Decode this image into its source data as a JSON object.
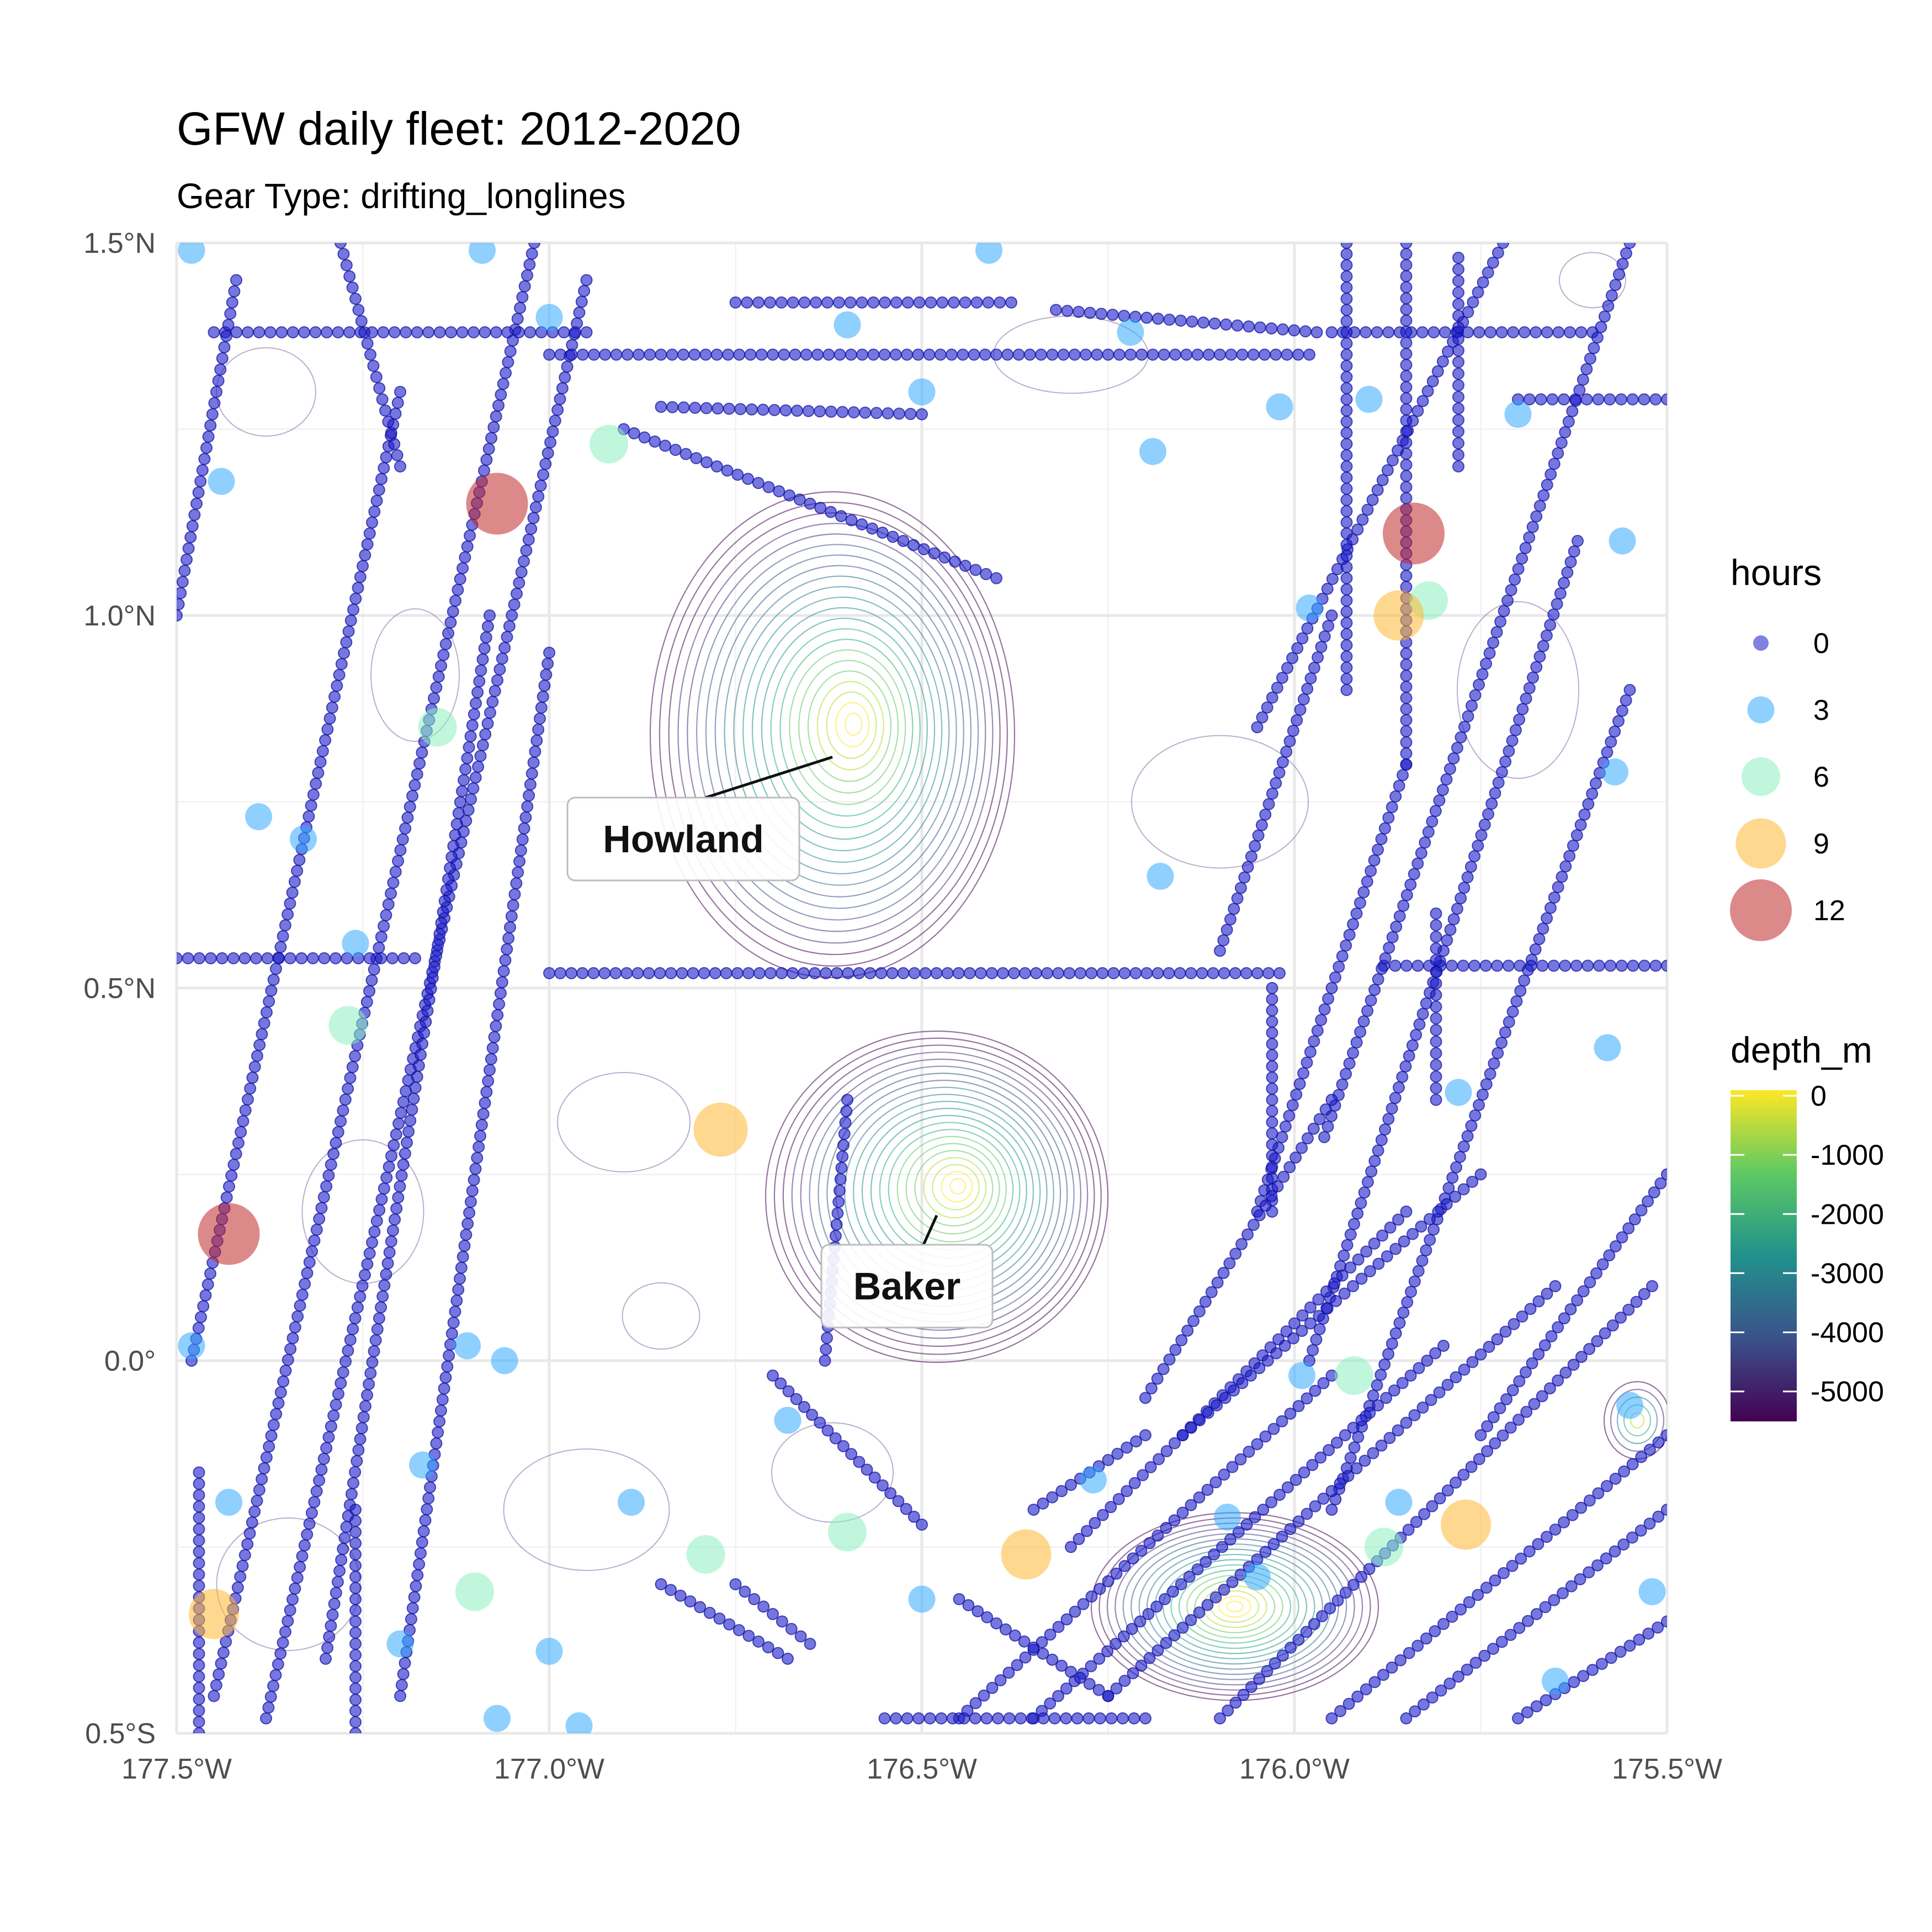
{
  "title": "GFW daily fleet: 2012-2020",
  "subtitle": "Gear Type: drifting_longlines",
  "chart_data": {
    "type": "scatter",
    "title": "GFW daily fleet: 2012-2020",
    "subtitle": "Gear Type: drifting_longlines",
    "xlabel": "",
    "ylabel": "",
    "xlim": [
      -177.5,
      -175.5
    ],
    "ylim": [
      -0.5,
      1.5
    ],
    "x_ticks": [
      -177.5,
      -177.0,
      -176.5,
      -176.0,
      -175.5
    ],
    "x_tick_labels": [
      "177.5°W",
      "177.0°W",
      "176.5°W",
      "176.0°W",
      "175.5°W"
    ],
    "y_ticks": [
      -0.5,
      0.0,
      0.5,
      1.0,
      1.5
    ],
    "y_tick_labels": [
      "0.5°S",
      "0.0°",
      "0.5°N",
      "1.0°N",
      "1.5°N"
    ],
    "grid": true,
    "annotations": [
      {
        "label": "Howland",
        "lon": -176.62,
        "lat": 0.81
      },
      {
        "label": "Baker",
        "lon": -176.48,
        "lat": 0.195
      }
    ],
    "legend_hours": {
      "title": "hours",
      "position": "right",
      "entries": [
        {
          "label": "0",
          "value": 0,
          "color": "#1a1acc"
        },
        {
          "label": "3",
          "value": 3,
          "color": "#33aaff"
        },
        {
          "label": "6",
          "value": 6,
          "color": "#8cf0c0"
        },
        {
          "label": "9",
          "value": 9,
          "color": "#ffb833"
        },
        {
          "label": "12",
          "value": 12,
          "color": "#c0282a"
        }
      ]
    },
    "legend_depth": {
      "title": "depth_m",
      "position": "right",
      "ticks": [
        0,
        -1000,
        -2000,
        -3000,
        -4000,
        -5000
      ],
      "tick_labels": [
        "0",
        "-1000",
        "-2000",
        "-3000",
        "-4000",
        "-5000"
      ],
      "colors": [
        "#fde725",
        "#5ec962",
        "#21918c",
        "#3b528b",
        "#440154"
      ]
    },
    "tracks": [
      {
        "name": "",
        "from": [
          -177.45,
          -0.45
        ],
        "to": [
          -177.02,
          1.5
        ]
      },
      {
        "name": "",
        "from": [
          -177.38,
          -0.48
        ],
        "to": [
          -176.95,
          1.45
        ]
      },
      {
        "name": "",
        "from": [
          -177.3,
          -0.4
        ],
        "to": [
          -177.08,
          1.0
        ]
      },
      {
        "name": "",
        "from": [
          -177.2,
          -0.45
        ],
        "to": [
          -177.0,
          0.95
        ]
      },
      {
        "name": "",
        "from": [
          -177.48,
          0.0
        ],
        "to": [
          -177.2,
          1.3
        ]
      },
      {
        "name": "",
        "from": [
          -177.5,
          0.54
        ],
        "to": [
          -177.18,
          0.54
        ]
      },
      {
        "name": "",
        "from": [
          -177.0,
          0.52
        ],
        "to": [
          -176.02,
          0.52
        ]
      },
      {
        "name": "",
        "from": [
          -175.88,
          0.53
        ],
        "to": [
          -175.5,
          0.53
        ]
      },
      {
        "name": "",
        "from": [
          -177.45,
          1.38
        ],
        "to": [
          -176.95,
          1.38
        ]
      },
      {
        "name": "",
        "from": [
          -177.0,
          1.35
        ],
        "to": [
          -175.98,
          1.35
        ]
      },
      {
        "name": "",
        "from": [
          -176.75,
          1.42
        ],
        "to": [
          -176.38,
          1.42
        ]
      },
      {
        "name": "",
        "from": [
          -176.32,
          1.41
        ],
        "to": [
          -175.97,
          1.38
        ]
      },
      {
        "name": "",
        "from": [
          -175.95,
          1.38
        ],
        "to": [
          -175.6,
          1.38
        ]
      },
      {
        "name": "",
        "from": [
          -175.7,
          1.29
        ],
        "to": [
          -175.5,
          1.29
        ]
      },
      {
        "name": "",
        "from": [
          -176.85,
          1.28
        ],
        "to": [
          -176.5,
          1.27
        ]
      },
      {
        "name": "",
        "from": [
          -176.9,
          1.25
        ],
        "to": [
          -176.4,
          1.05
        ]
      },
      {
        "name": "",
        "from": [
          -176.05,
          0.85
        ],
        "to": [
          -175.72,
          1.5
        ]
      },
      {
        "name": "",
        "from": [
          -175.96,
          0.3
        ],
        "to": [
          -175.55,
          1.5
        ]
      },
      {
        "name": "",
        "from": [
          -175.98,
          0.0
        ],
        "to": [
          -175.62,
          1.1
        ]
      },
      {
        "name": "",
        "from": [
          -175.95,
          -0.2
        ],
        "to": [
          -175.55,
          0.9
        ]
      },
      {
        "name": "",
        "from": [
          -176.05,
          0.2
        ],
        "to": [
          -175.85,
          0.8
        ]
      },
      {
        "name": "",
        "from": [
          -176.1,
          0.55
        ],
        "to": [
          -175.95,
          1.0
        ]
      },
      {
        "name": "",
        "from": [
          -175.93,
          1.5
        ],
        "to": [
          -175.93,
          0.9
        ]
      },
      {
        "name": "",
        "from": [
          -175.85,
          1.5
        ],
        "to": [
          -175.85,
          0.8
        ]
      },
      {
        "name": "",
        "from": [
          -175.78,
          1.48
        ],
        "to": [
          -175.78,
          1.2
        ]
      },
      {
        "name": "",
        "from": [
          -175.81,
          0.6
        ],
        "to": [
          -175.81,
          0.35
        ]
      },
      {
        "name": "",
        "from": [
          -176.03,
          0.5
        ],
        "to": [
          -176.03,
          0.2
        ]
      },
      {
        "name": "",
        "from": [
          -176.45,
          -0.48
        ],
        "to": [
          -175.95,
          -0.02
        ]
      },
      {
        "name": "",
        "from": [
          -176.35,
          -0.48
        ],
        "to": [
          -175.8,
          0.02
        ]
      },
      {
        "name": "",
        "from": [
          -176.25,
          -0.45
        ],
        "to": [
          -175.65,
          0.1
        ]
      },
      {
        "name": "",
        "from": [
          -176.1,
          -0.48
        ],
        "to": [
          -175.52,
          0.1
        ]
      },
      {
        "name": "",
        "from": [
          -175.95,
          -0.48
        ],
        "to": [
          -175.5,
          -0.1
        ]
      },
      {
        "name": "",
        "from": [
          -176.3,
          -0.25
        ],
        "to": [
          -175.85,
          0.2
        ]
      },
      {
        "name": "",
        "from": [
          -176.15,
          -0.1
        ],
        "to": [
          -175.75,
          0.25
        ]
      },
      {
        "name": "",
        "from": [
          -176.2,
          -0.05
        ],
        "to": [
          -175.95,
          0.35
        ]
      },
      {
        "name": "",
        "from": [
          -175.85,
          -0.48
        ],
        "to": [
          -175.5,
          -0.2
        ]
      },
      {
        "name": "",
        "from": [
          -175.7,
          -0.48
        ],
        "to": [
          -175.5,
          -0.35
        ]
      },
      {
        "name": "",
        "from": [
          -175.75,
          -0.1
        ],
        "to": [
          -175.5,
          0.25
        ]
      },
      {
        "name": "",
        "from": [
          -176.75,
          -0.3
        ],
        "to": [
          -176.65,
          -0.38
        ]
      },
      {
        "name": "",
        "from": [
          -176.85,
          -0.3
        ],
        "to": [
          -176.68,
          -0.4
        ]
      },
      {
        "name": "",
        "from": [
          -176.7,
          -0.02
        ],
        "to": [
          -176.5,
          -0.22
        ]
      },
      {
        "name": "",
        "from": [
          -176.45,
          -0.32
        ],
        "to": [
          -176.25,
          -0.45
        ]
      },
      {
        "name": "",
        "from": [
          -176.55,
          -0.48
        ],
        "to": [
          -176.2,
          -0.48
        ]
      },
      {
        "name": "",
        "from": [
          -176.35,
          -0.2
        ],
        "to": [
          -176.2,
          -0.1
        ]
      },
      {
        "name": "",
        "from": [
          -176.6,
          0.35
        ],
        "to": [
          -176.63,
          0.0
        ]
      },
      {
        "name": "",
        "from": [
          -177.26,
          -0.5
        ],
        "to": [
          -177.26,
          -0.2
        ]
      },
      {
        "name": "",
        "from": [
          -177.47,
          -0.5
        ],
        "to": [
          -177.47,
          -0.15
        ]
      },
      {
        "name": "",
        "from": [
          -177.5,
          1.0
        ],
        "to": [
          -177.42,
          1.45
        ]
      },
      {
        "name": "",
        "from": [
          -177.28,
          1.5
        ],
        "to": [
          -177.2,
          1.2
        ]
      }
    ],
    "points": [
      {
        "lon": -177.48,
        "lat": 1.49,
        "hours": 3
      },
      {
        "lon": -177.09,
        "lat": 1.49,
        "hours": 3
      },
      {
        "lon": -177.0,
        "lat": 1.4,
        "hours": 3
      },
      {
        "lon": -176.6,
        "lat": 1.39,
        "hours": 3
      },
      {
        "lon": -176.5,
        "lat": 1.3,
        "hours": 3
      },
      {
        "lon": -176.19,
        "lat": 1.22,
        "hours": 3
      },
      {
        "lon": -176.02,
        "lat": 1.28,
        "hours": 3
      },
      {
        "lon": -175.9,
        "lat": 1.29,
        "hours": 3
      },
      {
        "lon": -175.7,
        "lat": 1.27,
        "hours": 3
      },
      {
        "lon": -175.56,
        "lat": 1.1,
        "hours": 3
      },
      {
        "lon": -175.57,
        "lat": 0.79,
        "hours": 3
      },
      {
        "lon": -175.98,
        "lat": 1.01,
        "hours": 3
      },
      {
        "lon": -176.18,
        "lat": 0.65,
        "hours": 3
      },
      {
        "lon": -177.44,
        "lat": 1.18,
        "hours": 3
      },
      {
        "lon": -177.39,
        "lat": 0.73,
        "hours": 3
      },
      {
        "lon": -177.33,
        "lat": 0.7,
        "hours": 3
      },
      {
        "lon": -177.26,
        "lat": 0.56,
        "hours": 3
      },
      {
        "lon": -177.48,
        "lat": 0.02,
        "hours": 3
      },
      {
        "lon": -177.11,
        "lat": 0.02,
        "hours": 3
      },
      {
        "lon": -177.06,
        "lat": 0.0,
        "hours": 3
      },
      {
        "lon": -177.17,
        "lat": -0.14,
        "hours": 3
      },
      {
        "lon": -177.43,
        "lat": -0.19,
        "hours": 3
      },
      {
        "lon": -177.2,
        "lat": -0.38,
        "hours": 3
      },
      {
        "lon": -177.0,
        "lat": -0.39,
        "hours": 3
      },
      {
        "lon": -176.89,
        "lat": -0.19,
        "hours": 3
      },
      {
        "lon": -176.68,
        "lat": -0.08,
        "hours": 3
      },
      {
        "lon": -176.5,
        "lat": -0.32,
        "hours": 3
      },
      {
        "lon": -176.27,
        "lat": -0.16,
        "hours": 3
      },
      {
        "lon": -176.09,
        "lat": -0.21,
        "hours": 3
      },
      {
        "lon": -176.05,
        "lat": -0.29,
        "hours": 3
      },
      {
        "lon": -175.99,
        "lat": -0.02,
        "hours": 3
      },
      {
        "lon": -175.86,
        "lat": -0.19,
        "hours": 3
      },
      {
        "lon": -175.58,
        "lat": 0.42,
        "hours": 3
      },
      {
        "lon": -175.55,
        "lat": -0.06,
        "hours": 3
      },
      {
        "lon": -175.52,
        "lat": -0.31,
        "hours": 3
      },
      {
        "lon": -175.65,
        "lat": -0.43,
        "hours": 3
      },
      {
        "lon": -177.07,
        "lat": -0.48,
        "hours": 3
      },
      {
        "lon": -176.96,
        "lat": -0.49,
        "hours": 3
      },
      {
        "lon": -176.41,
        "lat": 1.49,
        "hours": 3
      },
      {
        "lon": -176.22,
        "lat": 1.38,
        "hours": 3
      },
      {
        "lon": -175.78,
        "lat": 0.36,
        "hours": 3
      },
      {
        "lon": -177.27,
        "lat": 0.45,
        "hours": 6
      },
      {
        "lon": -176.92,
        "lat": 1.23,
        "hours": 6
      },
      {
        "lon": -177.15,
        "lat": 0.85,
        "hours": 6
      },
      {
        "lon": -176.6,
        "lat": -0.23,
        "hours": 6
      },
      {
        "lon": -176.79,
        "lat": -0.26,
        "hours": 6
      },
      {
        "lon": -177.1,
        "lat": -0.31,
        "hours": 6
      },
      {
        "lon": -175.82,
        "lat": 1.02,
        "hours": 6
      },
      {
        "lon": -175.92,
        "lat": -0.02,
        "hours": 6
      },
      {
        "lon": -175.88,
        "lat": -0.25,
        "hours": 6
      },
      {
        "lon": -177.45,
        "lat": -0.34,
        "hours": 9
      },
      {
        "lon": -176.36,
        "lat": -0.26,
        "hours": 9
      },
      {
        "lon": -175.86,
        "lat": 1.0,
        "hours": 9
      },
      {
        "lon": -175.77,
        "lat": -0.22,
        "hours": 9
      },
      {
        "lon": -176.77,
        "lat": 0.31,
        "hours": 10
      },
      {
        "lon": -177.07,
        "lat": 1.15,
        "hours": 12
      },
      {
        "lon": -175.84,
        "lat": 1.11,
        "hours": 12
      },
      {
        "lon": -177.43,
        "lat": 0.17,
        "hours": 12
      }
    ]
  }
}
